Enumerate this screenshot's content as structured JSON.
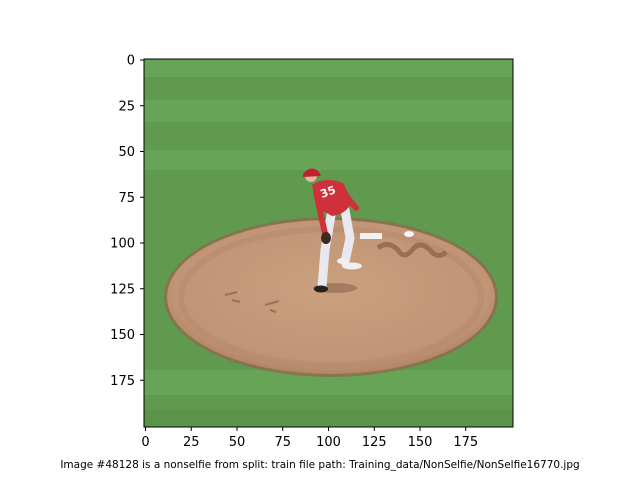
{
  "figure": {
    "caption": "Image #48128 is a nonselfie from split: train file path: Training_data/NonSelfie/NonSelfie16770.jpg",
    "image_description_icon": "baseball-pitcher-on-mound-photo",
    "colors": {
      "grass": "#5f9a4e",
      "grass_light": "#73ad5c",
      "mound": "#c49a78",
      "mound_edge": "#9e6f55",
      "jersey": "#d0303a",
      "pants": "#e8e8ee"
    }
  },
  "axes": {
    "x_ticks": [
      "0",
      "25",
      "50",
      "75",
      "100",
      "125",
      "150",
      "175"
    ],
    "y_ticks": [
      "0",
      "25",
      "50",
      "75",
      "100",
      "125",
      "150",
      "175"
    ],
    "x_tick_values": [
      0,
      25,
      50,
      75,
      100,
      125,
      150,
      175
    ],
    "y_tick_values": [
      0,
      25,
      50,
      75,
      100,
      125,
      150,
      175
    ],
    "xlim": [
      0,
      200
    ],
    "ylim": [
      200,
      0
    ]
  }
}
